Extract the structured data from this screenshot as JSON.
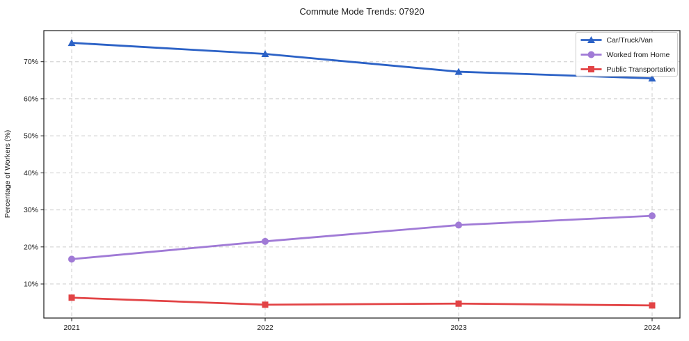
{
  "chart_data": {
    "type": "line",
    "title": "Commute Mode Trends: 07920",
    "xlabel": "",
    "ylabel": "Percentage of Workers (%)",
    "x": [
      "2021",
      "2022",
      "2023",
      "2024"
    ],
    "yticks": [
      10,
      20,
      30,
      40,
      50,
      60,
      70
    ],
    "ytick_suffix": "%",
    "ylim": [
      0.8,
      78.4
    ],
    "grid": true,
    "grid_style": "dashed",
    "grid_color": "#cccccc",
    "legend_position": "upper-right",
    "series": [
      {
        "name": "Car/Truck/Van",
        "marker": "triangle",
        "color": "#2c62c6",
        "values": [
          75.1,
          72.1,
          67.3,
          65.5
        ]
      },
      {
        "name": "Worked from Home",
        "marker": "circle",
        "color": "#a07ad6",
        "values": [
          16.7,
          21.5,
          25.9,
          28.4
        ]
      },
      {
        "name": "Public Transportation",
        "marker": "square",
        "color": "#e24345",
        "values": [
          6.3,
          4.4,
          4.7,
          4.2
        ]
      }
    ]
  }
}
